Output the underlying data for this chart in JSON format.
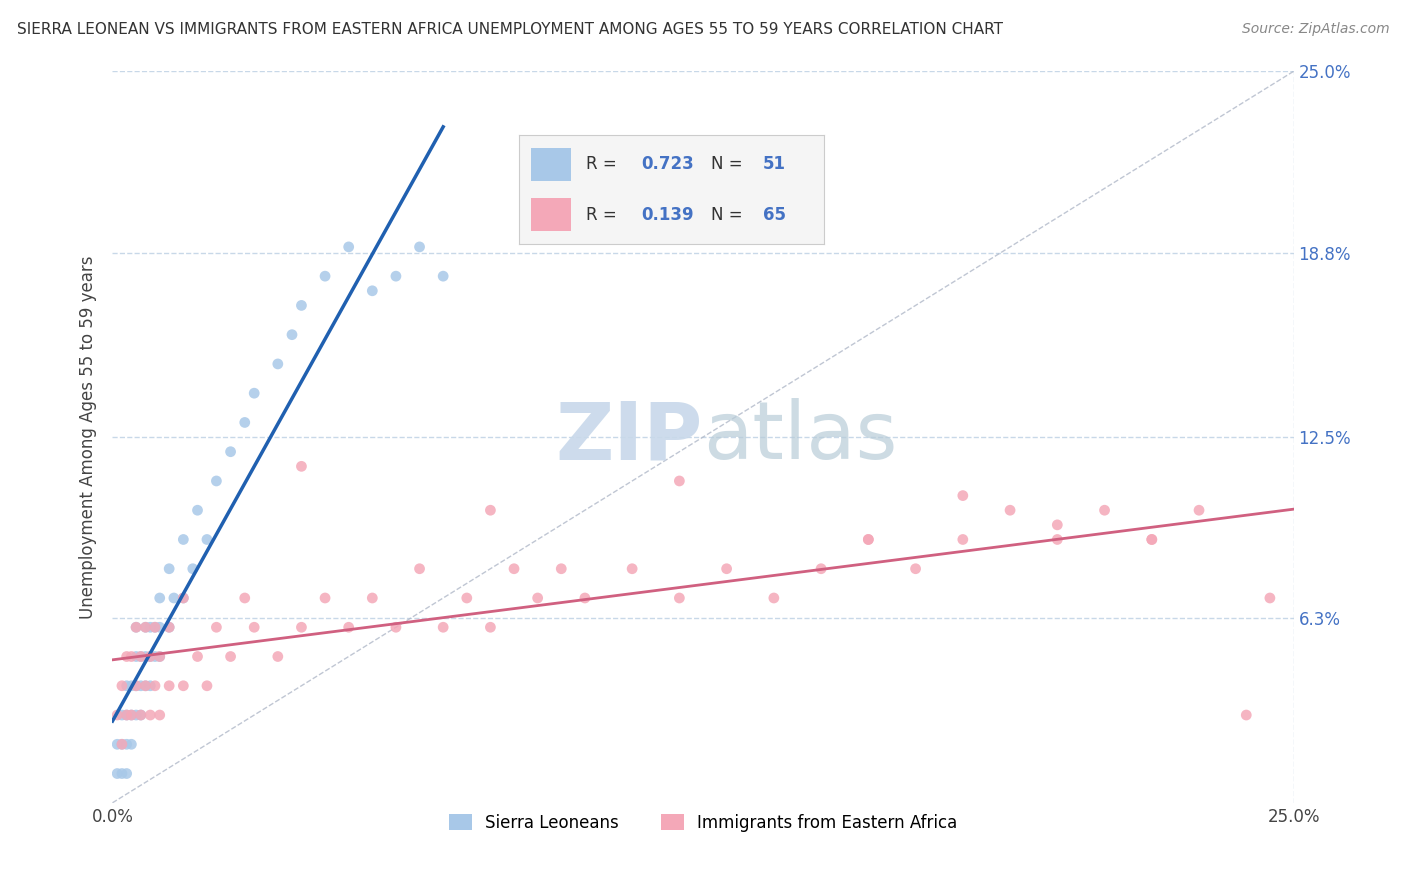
{
  "title": "SIERRA LEONEAN VS IMMIGRANTS FROM EASTERN AFRICA UNEMPLOYMENT AMONG AGES 55 TO 59 YEARS CORRELATION CHART",
  "source": "Source: ZipAtlas.com",
  "ylabel": "Unemployment Among Ages 55 to 59 years",
  "xlim": [
    0.0,
    0.25
  ],
  "ylim": [
    0.0,
    0.25
  ],
  "y_tick_labels": [
    "25.0%",
    "18.8%",
    "12.5%",
    "6.3%"
  ],
  "y_tick_vals": [
    0.25,
    0.188,
    0.125,
    0.063
  ],
  "grid_color": "#c8d8e8",
  "background_color": "#ffffff",
  "sierra_color": "#a8c8e8",
  "eastern_color": "#f4a8b8",
  "sierra_line_color": "#2060b0",
  "eastern_line_color": "#d06080",
  "diagonal_color": "#b0b8c8",
  "legend_label1": "Sierra Leoneans",
  "legend_label2": "Immigrants from Eastern Africa",
  "sierra_R": "0.723",
  "sierra_N": "51",
  "eastern_R": "0.139",
  "eastern_N": "65",
  "sierra_scatter_x": [
    0.001,
    0.002,
    0.002,
    0.003,
    0.003,
    0.003,
    0.004,
    0.004,
    0.004,
    0.005,
    0.005,
    0.005,
    0.005,
    0.006,
    0.006,
    0.006,
    0.007,
    0.007,
    0.007,
    0.008,
    0.008,
    0.008,
    0.009,
    0.009,
    0.01,
    0.01,
    0.01,
    0.012,
    0.012,
    0.013,
    0.015,
    0.015,
    0.017,
    0.018,
    0.02,
    0.022,
    0.025,
    0.028,
    0.03,
    0.035,
    0.038,
    0.04,
    0.045,
    0.05,
    0.055,
    0.06,
    0.065,
    0.07,
    0.001,
    0.002,
    0.003
  ],
  "sierra_scatter_y": [
    0.02,
    0.02,
    0.03,
    0.02,
    0.03,
    0.04,
    0.02,
    0.03,
    0.04,
    0.03,
    0.04,
    0.05,
    0.06,
    0.03,
    0.04,
    0.05,
    0.04,
    0.05,
    0.06,
    0.04,
    0.05,
    0.06,
    0.05,
    0.06,
    0.05,
    0.06,
    0.07,
    0.06,
    0.08,
    0.07,
    0.07,
    0.09,
    0.08,
    0.1,
    0.09,
    0.11,
    0.12,
    0.13,
    0.14,
    0.15,
    0.16,
    0.17,
    0.18,
    0.19,
    0.175,
    0.18,
    0.19,
    0.18,
    0.01,
    0.01,
    0.01
  ],
  "eastern_scatter_x": [
    0.001,
    0.002,
    0.002,
    0.003,
    0.003,
    0.004,
    0.004,
    0.005,
    0.005,
    0.006,
    0.006,
    0.007,
    0.007,
    0.008,
    0.008,
    0.009,
    0.009,
    0.01,
    0.01,
    0.012,
    0.012,
    0.015,
    0.015,
    0.018,
    0.02,
    0.022,
    0.025,
    0.028,
    0.03,
    0.035,
    0.04,
    0.045,
    0.05,
    0.055,
    0.06,
    0.065,
    0.07,
    0.075,
    0.08,
    0.085,
    0.09,
    0.095,
    0.1,
    0.11,
    0.12,
    0.13,
    0.14,
    0.15,
    0.16,
    0.17,
    0.18,
    0.19,
    0.2,
    0.21,
    0.22,
    0.23,
    0.24,
    0.04,
    0.08,
    0.12,
    0.16,
    0.2,
    0.18,
    0.22,
    0.245
  ],
  "eastern_scatter_y": [
    0.03,
    0.02,
    0.04,
    0.03,
    0.05,
    0.03,
    0.05,
    0.04,
    0.06,
    0.03,
    0.05,
    0.04,
    0.06,
    0.03,
    0.05,
    0.04,
    0.06,
    0.03,
    0.05,
    0.04,
    0.06,
    0.04,
    0.07,
    0.05,
    0.04,
    0.06,
    0.05,
    0.07,
    0.06,
    0.05,
    0.06,
    0.07,
    0.06,
    0.07,
    0.06,
    0.08,
    0.06,
    0.07,
    0.06,
    0.08,
    0.07,
    0.08,
    0.07,
    0.08,
    0.07,
    0.08,
    0.07,
    0.08,
    0.09,
    0.08,
    0.09,
    0.1,
    0.09,
    0.1,
    0.09,
    0.1,
    0.03,
    0.115,
    0.1,
    0.11,
    0.09,
    0.095,
    0.105,
    0.09,
    0.07
  ]
}
